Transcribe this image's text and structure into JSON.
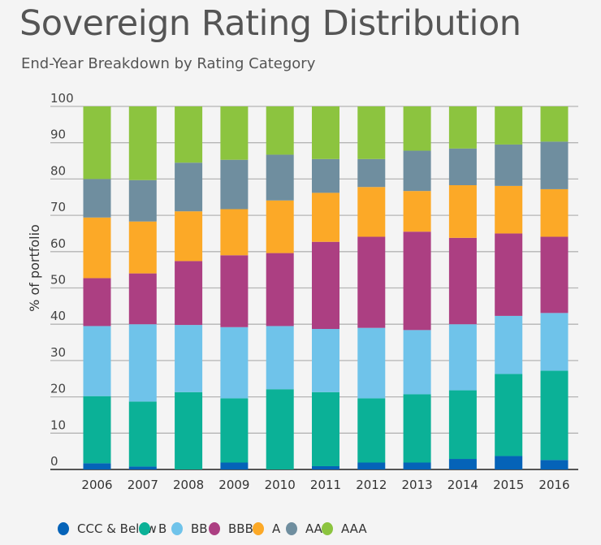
{
  "chart_data": {
    "type": "bar",
    "stacked": true,
    "title": "Sovereign Rating Distribution",
    "subtitle": "End-Year Breakdown by Rating Category",
    "xlabel": "",
    "ylabel": "% of portfolio",
    "ylim": [
      0,
      100
    ],
    "yticks": [
      0,
      10,
      20,
      30,
      40,
      50,
      60,
      70,
      80,
      90,
      100
    ],
    "grid": true,
    "legend_position": "bottom",
    "categories": [
      "2006",
      "2007",
      "2008",
      "2009",
      "2010",
      "2011",
      "2012",
      "2013",
      "2014",
      "2015",
      "2016"
    ],
    "series": [
      {
        "name": "CCC & Below",
        "color": "#0563b8",
        "values": [
          1.7,
          0.8,
          0,
          1.9,
          0,
          0.9,
          1.9,
          1.9,
          2.9,
          3.7,
          2.6
        ]
      },
      {
        "name": "B",
        "color": "#0bb197",
        "values": [
          18.5,
          17.9,
          21.3,
          17.7,
          22.1,
          20.4,
          17.7,
          18.8,
          18.9,
          22.6,
          24.6
        ]
      },
      {
        "name": "BB",
        "color": "#6fc3ea",
        "values": [
          19.3,
          21.3,
          18.5,
          19.6,
          17.4,
          17.4,
          19.4,
          17.7,
          18.2,
          16.0,
          15.9
        ]
      },
      {
        "name": "BBB",
        "color": "#ac3f82",
        "values": [
          13.2,
          14.0,
          17.6,
          19.8,
          20.1,
          24.0,
          25.1,
          27.1,
          23.8,
          22.7,
          21.0
        ]
      },
      {
        "name": "A",
        "color": "#fca927",
        "values": [
          16.7,
          14.3,
          13.7,
          12.7,
          14.5,
          13.5,
          13.7,
          11.2,
          14.5,
          13.1,
          13.1
        ]
      },
      {
        "name": "AA",
        "color": "#6f8e9f",
        "values": [
          10.6,
          11.4,
          13.4,
          13.6,
          12.6,
          9.3,
          7.7,
          11.1,
          10.1,
          11.4,
          13.1
        ]
      },
      {
        "name": "AAA",
        "color": "#8cc43f",
        "values": [
          20.0,
          20.3,
          15.5,
          14.7,
          13.3,
          14.5,
          14.5,
          12.2,
          11.6,
          10.5,
          9.7
        ]
      }
    ]
  }
}
